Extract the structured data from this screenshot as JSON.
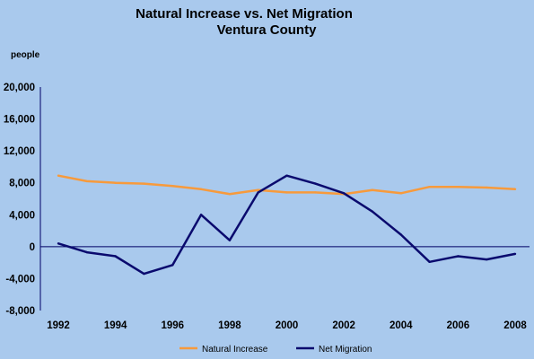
{
  "chart_data": {
    "type": "line",
    "title": "Natural Increase vs. Net Migration",
    "subtitle": "Ventura County",
    "ylabel": "people",
    "xlabel": "",
    "x": [
      1992,
      1993,
      1994,
      1995,
      1996,
      1997,
      1998,
      1999,
      2000,
      2001,
      2002,
      2003,
      2004,
      2005,
      2006,
      2007,
      2008
    ],
    "x_tick_labels": [
      "1992",
      "1994",
      "1996",
      "1998",
      "2000",
      "2002",
      "2004",
      "2006",
      "2008"
    ],
    "y_tick_labels": [
      "20,000",
      "16,000",
      "12,000",
      "8,000",
      "4,000",
      "0",
      "-4,000",
      "-8,000"
    ],
    "ylim": [
      -8000,
      20000
    ],
    "xlim": [
      1992,
      2008
    ],
    "grid": false,
    "legend_position": "bottom",
    "series": [
      {
        "name": "Natural Increase",
        "color": "#f79a3c",
        "values": [
          8900,
          8200,
          8000,
          7900,
          7600,
          7200,
          6600,
          7100,
          6800,
          6800,
          6600,
          7100,
          6700,
          7500,
          7500,
          7400,
          7200
        ]
      },
      {
        "name": "Net Migration",
        "color": "#0a0a6e",
        "values": [
          400,
          -700,
          -1200,
          -3400,
          -2300,
          4000,
          800,
          6800,
          8900,
          7900,
          6700,
          4400,
          1500,
          -1900,
          -1200,
          -1600,
          -900
        ]
      }
    ]
  }
}
